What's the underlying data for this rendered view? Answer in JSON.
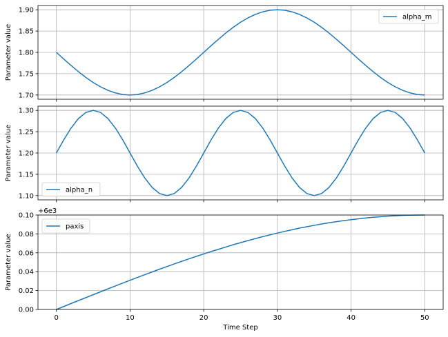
{
  "chart_data": [
    {
      "type": "line",
      "ylabel": "Parameter value",
      "xlabel": "",
      "xlim": [
        -2.5,
        52.5
      ],
      "ylim": [
        1.69,
        1.91
      ],
      "xticks": [
        0,
        10,
        20,
        30,
        40,
        50
      ],
      "yticks": [
        1.7,
        1.75,
        1.8,
        1.85,
        1.9
      ],
      "ytick_labels": [
        "1.70",
        "1.75",
        "1.80",
        "1.85",
        "1.90"
      ],
      "grid": true,
      "legend_position": "upper right",
      "series": [
        {
          "name": "alpha_m",
          "color": "#1f77b4",
          "x": [
            0,
            1,
            2,
            3,
            4,
            5,
            6,
            7,
            8,
            9,
            10,
            11,
            12,
            13,
            14,
            15,
            16,
            17,
            18,
            19,
            20,
            21,
            22,
            23,
            24,
            25,
            26,
            27,
            28,
            29,
            30,
            31,
            32,
            33,
            34,
            35,
            36,
            37,
            38,
            39,
            40,
            41,
            42,
            43,
            44,
            45,
            46,
            47,
            48,
            49,
            50
          ],
          "y": [
            1.8,
            1.7843,
            1.7691,
            1.7546,
            1.7412,
            1.7293,
            1.7191,
            1.7109,
            1.7049,
            1.7012,
            1.7,
            1.7012,
            1.7049,
            1.7109,
            1.7191,
            1.7293,
            1.7412,
            1.7546,
            1.7691,
            1.7843,
            1.8,
            1.8156,
            1.8309,
            1.8454,
            1.8588,
            1.8707,
            1.8809,
            1.8891,
            1.8951,
            1.8988,
            1.9,
            1.8988,
            1.8951,
            1.8891,
            1.8809,
            1.8707,
            1.8588,
            1.8454,
            1.8309,
            1.8156,
            1.8,
            1.7843,
            1.7691,
            1.7546,
            1.7412,
            1.7293,
            1.7191,
            1.7109,
            1.7049,
            1.7012,
            1.7
          ]
        }
      ]
    },
    {
      "type": "line",
      "ylabel": "Parameter value",
      "xlabel": "",
      "xlim": [
        -2.5,
        52.5
      ],
      "ylim": [
        1.09,
        1.31
      ],
      "xticks": [
        0,
        10,
        20,
        30,
        40,
        50
      ],
      "yticks": [
        1.1,
        1.15,
        1.2,
        1.25,
        1.3
      ],
      "ytick_labels": [
        "1.10",
        "1.15",
        "1.20",
        "1.25",
        "1.30"
      ],
      "grid": true,
      "legend_position": "lower left",
      "series": [
        {
          "name": "alpha_n",
          "color": "#1f77b4",
          "x": [
            0,
            1,
            2,
            3,
            4,
            5,
            6,
            7,
            8,
            9,
            10,
            11,
            12,
            13,
            14,
            15,
            16,
            17,
            18,
            19,
            20,
            21,
            22,
            23,
            24,
            25,
            26,
            27,
            28,
            29,
            30,
            31,
            32,
            33,
            34,
            35,
            36,
            37,
            38,
            39,
            40,
            41,
            42,
            43,
            44,
            45,
            46,
            47,
            48,
            49,
            50
          ],
          "y": [
            1.2,
            1.2309,
            1.2588,
            1.2809,
            1.2951,
            1.3,
            1.2951,
            1.2809,
            1.2588,
            1.2309,
            1.2,
            1.1691,
            1.1412,
            1.1191,
            1.1049,
            1.1,
            1.1049,
            1.1191,
            1.1412,
            1.1691,
            1.2,
            1.2309,
            1.2588,
            1.2809,
            1.2951,
            1.3,
            1.2951,
            1.2809,
            1.2588,
            1.2309,
            1.2,
            1.1691,
            1.1412,
            1.1191,
            1.1049,
            1.1,
            1.1049,
            1.1191,
            1.1412,
            1.1691,
            1.2,
            1.2309,
            1.2588,
            1.2809,
            1.2951,
            1.3,
            1.2951,
            1.2809,
            1.2588,
            1.2309,
            1.2
          ]
        }
      ]
    },
    {
      "type": "line",
      "ylabel": "Parameter value",
      "xlabel": "Time Step",
      "xlim": [
        -2.5,
        52.5
      ],
      "ylim": [
        6000.0,
        6000.1
      ],
      "y_offset_label": "+6e3",
      "xticks": [
        0,
        10,
        20,
        30,
        40,
        50
      ],
      "yticks": [
        0.0,
        0.02,
        0.04,
        0.06,
        0.08,
        0.1
      ],
      "ytick_labels": [
        "0.00",
        "0.02",
        "0.04",
        "0.06",
        "0.08",
        "0.10"
      ],
      "grid": true,
      "legend_position": "upper left",
      "series": [
        {
          "name": "paxis",
          "color": "#1f77b4",
          "x": [
            0,
            1,
            2,
            3,
            4,
            5,
            6,
            7,
            8,
            9,
            10,
            11,
            12,
            13,
            14,
            15,
            16,
            17,
            18,
            19,
            20,
            21,
            22,
            23,
            24,
            25,
            26,
            27,
            28,
            29,
            30,
            31,
            32,
            33,
            34,
            35,
            36,
            37,
            38,
            39,
            40,
            41,
            42,
            43,
            44,
            45,
            46,
            47,
            48,
            49,
            50
          ],
          "y": [
            0.0,
            0.0031,
            0.0063,
            0.0094,
            0.0125,
            0.0156,
            0.0187,
            0.0218,
            0.0249,
            0.0279,
            0.0309,
            0.0339,
            0.0368,
            0.0397,
            0.0426,
            0.0454,
            0.0482,
            0.0509,
            0.0536,
            0.0562,
            0.0588,
            0.0613,
            0.0637,
            0.0661,
            0.0685,
            0.0707,
            0.0729,
            0.075,
            0.0771,
            0.079,
            0.0809,
            0.0827,
            0.0844,
            0.0861,
            0.0876,
            0.0891,
            0.0905,
            0.0918,
            0.093,
            0.0941,
            0.0951,
            0.096,
            0.0969,
            0.0976,
            0.0982,
            0.0988,
            0.0992,
            0.0996,
            0.0998,
            0.0999,
            0.1
          ]
        }
      ]
    }
  ]
}
